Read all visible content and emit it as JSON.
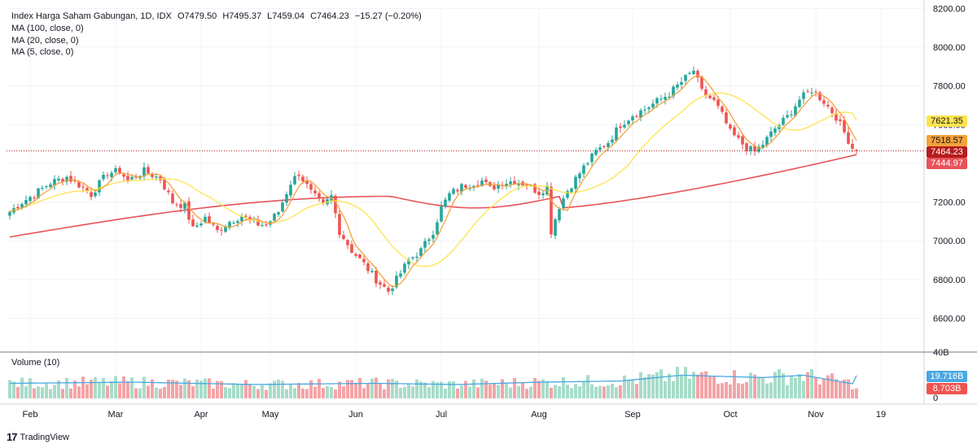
{
  "header": {
    "title": "Index Harga Saham Gabungan, 1D, IDX",
    "open": "O7479.50",
    "high": "H7495.37",
    "low": "L7459.04",
    "close": "C7464.23",
    "change": "−15.27 (−0.20%)"
  },
  "indicators": {
    "ma100": "MA (100, close, 0)",
    "ma20": "MA (20, close, 0)",
    "ma5": "MA (5, close, 0)",
    "volume": "Volume (10)"
  },
  "price_tags": {
    "ma20": "7621.35",
    "ma5": "7518.57",
    "close": "7464.23",
    "ma100": "7444.97",
    "vol_ma": "19.716B",
    "vol": "8.703B"
  },
  "volume_axis": {
    "top": "40B",
    "bottom": "0"
  },
  "branding": {
    "name": "TradingView"
  },
  "colors": {
    "up": "#26a69a",
    "down": "#ef5350",
    "vol_up": "#a8dcc9",
    "vol_down": "#f4a4a6",
    "ma100": "#e8525a",
    "ma20": "#fde34f",
    "ma5": "#f5a23a",
    "vol_ma": "#4aa8e3",
    "close_tag": "#b71c1c"
  },
  "chart_data": {
    "type": "candlestick",
    "title": "Index Harga Saham Gabungan, 1D, IDX",
    "y_ticks": [
      8200,
      8000,
      7800,
      7600,
      7400,
      7200,
      7000,
      6800,
      6600
    ],
    "y_tick_labels": [
      "8200.00",
      "8000.00",
      "7800.00",
      "7600.00",
      "7400.00",
      "7200.00",
      "7000.00",
      "6800.00",
      "6600.00"
    ],
    "ylim": [
      6430,
      8210
    ],
    "x_ticks": [
      {
        "label": "Feb",
        "index": 5
      },
      {
        "label": "Mar",
        "index": 26
      },
      {
        "label": "Apr",
        "index": 47
      },
      {
        "label": "May",
        "index": 64
      },
      {
        "label": "Jun",
        "index": 85
      },
      {
        "label": "Jul",
        "index": 106
      },
      {
        "label": "Aug",
        "index": 130
      },
      {
        "label": "Sep",
        "index": 153
      },
      {
        "label": "Oct",
        "index": 177
      },
      {
        "label": "Nov",
        "index": 198
      },
      {
        "label": "19",
        "index": 214
      }
    ],
    "anchors": [
      [
        0,
        7150
      ],
      [
        3,
        7200
      ],
      [
        6,
        7240
      ],
      [
        10,
        7300
      ],
      [
        14,
        7330
      ],
      [
        17,
        7290
      ],
      [
        20,
        7240
      ],
      [
        24,
        7350
      ],
      [
        27,
        7360
      ],
      [
        29,
        7310
      ],
      [
        33,
        7360
      ],
      [
        37,
        7320
      ],
      [
        40,
        7200
      ],
      [
        43,
        7180
      ],
      [
        45,
        7060
      ],
      [
        48,
        7120
      ],
      [
        51,
        7050
      ],
      [
        54,
        7100
      ],
      [
        57,
        7130
      ],
      [
        60,
        7090
      ],
      [
        63,
        7080
      ],
      [
        66,
        7150
      ],
      [
        69,
        7300
      ],
      [
        71,
        7350
      ],
      [
        74,
        7250
      ],
      [
        77,
        7180
      ],
      [
        79,
        7230
      ],
      [
        81,
        7050
      ],
      [
        84,
        6950
      ],
      [
        87,
        6880
      ],
      [
        90,
        6800
      ],
      [
        93,
        6740
      ],
      [
        95,
        6800
      ],
      [
        98,
        6900
      ],
      [
        101,
        6950
      ],
      [
        104,
        7050
      ],
      [
        106,
        7170
      ],
      [
        108,
        7240
      ],
      [
        111,
        7280
      ],
      [
        114,
        7300
      ],
      [
        116,
        7310
      ],
      [
        118,
        7270
      ],
      [
        121,
        7300
      ],
      [
        124,
        7310
      ],
      [
        127,
        7290
      ],
      [
        130,
        7250
      ],
      [
        132,
        7280
      ],
      [
        133,
        7050
      ],
      [
        135,
        7180
      ],
      [
        137,
        7260
      ],
      [
        141,
        7380
      ],
      [
        144,
        7460
      ],
      [
        147,
        7510
      ],
      [
        150,
        7600
      ],
      [
        153,
        7650
      ],
      [
        156,
        7680
      ],
      [
        159,
        7720
      ],
      [
        162,
        7760
      ],
      [
        165,
        7820
      ],
      [
        168,
        7880
      ],
      [
        170,
        7770
      ],
      [
        173,
        7720
      ],
      [
        175,
        7650
      ],
      [
        177,
        7560
      ],
      [
        179,
        7520
      ],
      [
        181,
        7480
      ],
      [
        183,
        7460
      ],
      [
        185,
        7500
      ],
      [
        188,
        7580
      ],
      [
        191,
        7640
      ],
      [
        194,
        7730
      ],
      [
        197,
        7780
      ],
      [
        200,
        7720
      ],
      [
        203,
        7640
      ],
      [
        205,
        7560
      ],
      [
        207,
        7480
      ],
      [
        208,
        7464.23
      ]
    ],
    "ma100_last": 7444.97,
    "ma20_last": 7621.35,
    "ma5_last": 7518.57,
    "volume": {
      "ylim": [
        0,
        40
      ],
      "ma_last": 19.716,
      "last": 8.703,
      "levels": [
        [
          0,
          13
        ],
        [
          30,
          14
        ],
        [
          60,
          12
        ],
        [
          90,
          13
        ],
        [
          110,
          12
        ],
        [
          130,
          14
        ],
        [
          150,
          15
        ],
        [
          165,
          20
        ],
        [
          175,
          19
        ],
        [
          185,
          18
        ],
        [
          195,
          20
        ],
        [
          208,
          12
        ]
      ]
    }
  }
}
